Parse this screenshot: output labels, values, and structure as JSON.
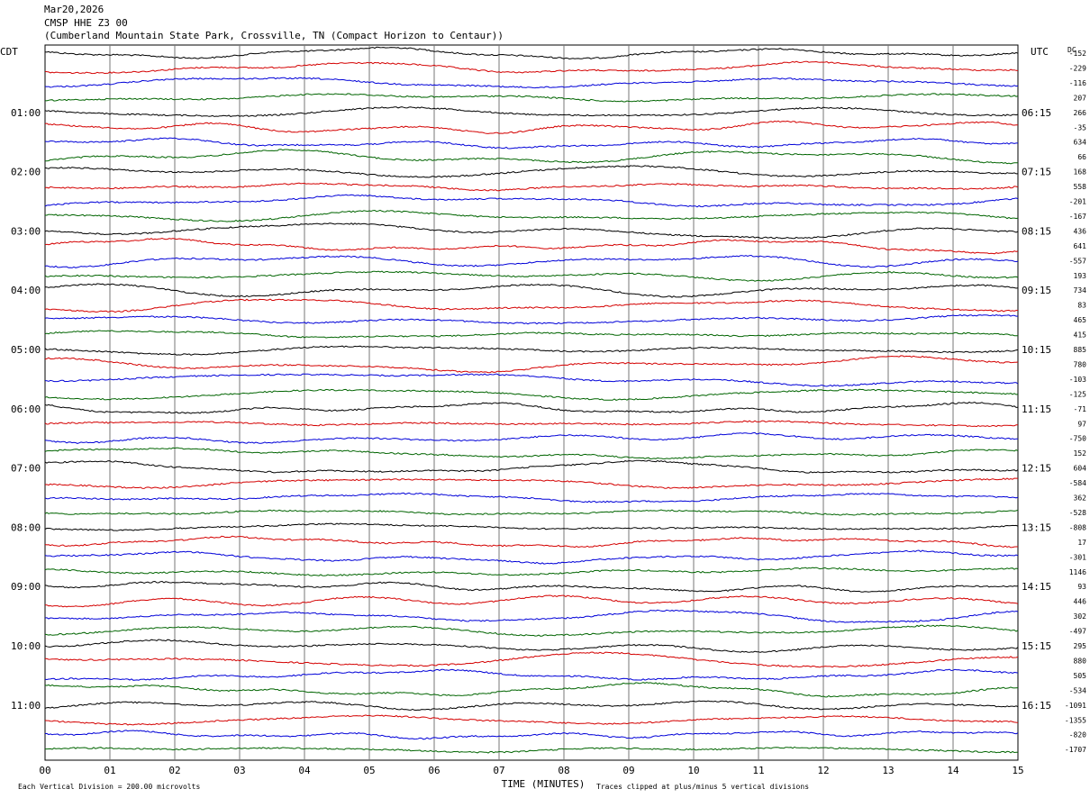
{
  "header": {
    "date": "Mar20,2026",
    "station": "CMSP HHE Z3 00",
    "location": "(Cumberland Mountain State Park, Crossville, TN (Compact Horizon to Centaur))"
  },
  "chart_data": {
    "type": "line",
    "title": "",
    "xlabel": "TIME (MINUTES)",
    "x_ticks": [
      "00",
      "01",
      "02",
      "03",
      "04",
      "05",
      "06",
      "07",
      "08",
      "09",
      "10",
      "11",
      "12",
      "13",
      "14",
      "15"
    ],
    "xlim": [
      0,
      15
    ],
    "left_label": "CDT",
    "right_label": "UTC",
    "dc_label": "DC",
    "left_times": [
      "01:00",
      "02:00",
      "03:00",
      "04:00",
      "05:00",
      "06:00",
      "07:00",
      "08:00",
      "09:00",
      "10:00",
      "11:00"
    ],
    "right_times": [
      "06:15",
      "07:15",
      "08:15",
      "09:15",
      "10:15",
      "11:15",
      "12:15",
      "13:15",
      "14:15",
      "15:15",
      "16:15"
    ],
    "dc_offsets": [
      "-152",
      "-229",
      "-116",
      "207",
      "266",
      "-35",
      "634",
      "66",
      "168",
      "558",
      "-201",
      "-167",
      "436",
      "641",
      "-557",
      "193",
      "734",
      "83",
      "465",
      "415",
      "885",
      "780",
      "-103",
      "-125",
      "-71",
      "97",
      "-750",
      "152",
      "604",
      "-584",
      "362",
      "-528",
      "-808",
      "17",
      "-301",
      "1146",
      "93",
      "446",
      "302",
      "-497",
      "295",
      "880",
      "505",
      "-534",
      "-1091",
      "-1355",
      "-820",
      "-1707"
    ],
    "trace_colors": [
      "#000000",
      "#d40000",
      "#0000d8",
      "#006400"
    ],
    "grid": true,
    "footer_left": "Each Vertical Division =  200.00 microvolts",
    "footer_right": "Traces clipped at plus/minus 5 vertical divisions"
  }
}
